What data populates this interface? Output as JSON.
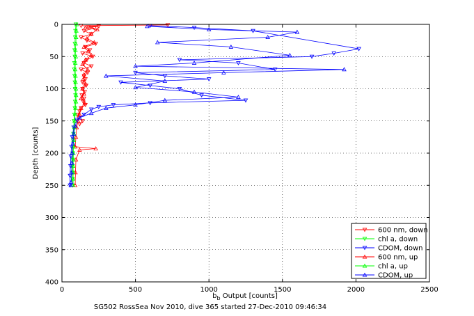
{
  "chart_data": {
    "type": "scatter",
    "xlabel": {
      "base": "b",
      "subscript": "b",
      "rest": " Output [counts]"
    },
    "ylabel": "Depth [counts]",
    "caption": "SG502 RossSea Nov 2010, dive 365 started 27-Dec-2010 09:46:34",
    "xlim": [
      0,
      2500
    ],
    "ylim": [
      0,
      400
    ],
    "y_reversed": true,
    "grid": true,
    "grid_style": "dotted",
    "legend_position": "bottom-right",
    "xticks": [
      0,
      500,
      1000,
      1500,
      2000,
      2500
    ],
    "xtick_labels": [
      "0",
      "500",
      "1000",
      "1500",
      "2000",
      "2500"
    ],
    "yticks": [
      0,
      50,
      100,
      150,
      200,
      250,
      300,
      350,
      400
    ],
    "ytick_labels": [
      "0",
      "50",
      "100",
      "150",
      "200",
      "250",
      "300",
      "350",
      "400"
    ],
    "series": [
      {
        "name": "600 nm, down",
        "color": "#ff0000",
        "marker": "triangle-down",
        "points": [
          [
            130,
            2
          ],
          [
            180,
            4
          ],
          [
            220,
            6
          ],
          [
            250,
            3
          ],
          [
            720,
            1
          ],
          [
            150,
            10
          ],
          [
            200,
            15
          ],
          [
            130,
            20
          ],
          [
            170,
            25
          ],
          [
            230,
            30
          ],
          [
            160,
            35
          ],
          [
            190,
            40
          ],
          [
            140,
            45
          ],
          [
            210,
            50
          ],
          [
            170,
            55
          ],
          [
            150,
            60
          ],
          [
            200,
            65
          ],
          [
            130,
            70
          ],
          [
            175,
            75
          ],
          [
            150,
            80
          ],
          [
            160,
            85
          ],
          [
            140,
            90
          ],
          [
            165,
            95
          ],
          [
            140,
            100
          ],
          [
            155,
            105
          ],
          [
            135,
            110
          ],
          [
            150,
            115
          ],
          [
            145,
            120
          ],
          [
            160,
            125
          ],
          [
            130,
            130
          ],
          [
            120,
            135
          ],
          [
            110,
            140
          ],
          [
            115,
            145
          ],
          [
            140,
            150
          ],
          [
            120,
            155
          ]
        ]
      },
      {
        "name": "chl a, down",
        "color": "#00ff00",
        "marker": "triangle-down",
        "points": [
          [
            95,
            0
          ],
          [
            92,
            10
          ],
          [
            90,
            20
          ],
          [
            88,
            30
          ],
          [
            86,
            40
          ],
          [
            88,
            50
          ],
          [
            85,
            60
          ],
          [
            84,
            70
          ],
          [
            86,
            80
          ],
          [
            88,
            90
          ],
          [
            90,
            100
          ],
          [
            92,
            110
          ],
          [
            90,
            120
          ],
          [
            88,
            130
          ],
          [
            85,
            140
          ],
          [
            82,
            150
          ],
          [
            80,
            160
          ],
          [
            78,
            170
          ],
          [
            76,
            180
          ],
          [
            75,
            190
          ],
          [
            74,
            200
          ],
          [
            73,
            210
          ],
          [
            72,
            220
          ],
          [
            72,
            230
          ],
          [
            72,
            240
          ],
          [
            72,
            250
          ]
        ]
      },
      {
        "name": "CDOM, down",
        "color": "#0000ff",
        "marker": "triangle-down",
        "points": [
          [
            600,
            2
          ],
          [
            900,
            5
          ],
          [
            1300,
            10
          ],
          [
            1850,
            45
          ],
          [
            2020,
            38
          ],
          [
            1700,
            50
          ],
          [
            800,
            55
          ],
          [
            1200,
            60
          ],
          [
            1450,
            70
          ],
          [
            500,
            75
          ],
          [
            700,
            80
          ],
          [
            1000,
            85
          ],
          [
            400,
            90
          ],
          [
            600,
            95
          ],
          [
            800,
            100
          ],
          [
            950,
            110
          ],
          [
            1250,
            118
          ],
          [
            600,
            122
          ],
          [
            350,
            125
          ],
          [
            250,
            128
          ],
          [
            200,
            132
          ],
          [
            150,
            140
          ],
          [
            100,
            148
          ],
          [
            80,
            160
          ],
          [
            70,
            175
          ],
          [
            65,
            190
          ],
          [
            60,
            205
          ],
          [
            58,
            220
          ],
          [
            55,
            235
          ],
          [
            55,
            250
          ]
        ]
      },
      {
        "name": "600 nm, up",
        "color": "#ff0000",
        "marker": "triangle-up",
        "points": [
          [
            160,
            5
          ],
          [
            240,
            8
          ],
          [
            200,
            15
          ],
          [
            170,
            22
          ],
          [
            220,
            28
          ],
          [
            150,
            35
          ],
          [
            180,
            42
          ],
          [
            200,
            48
          ],
          [
            160,
            55
          ],
          [
            140,
            62
          ],
          [
            175,
            70
          ],
          [
            150,
            78
          ],
          [
            145,
            85
          ],
          [
            160,
            92
          ],
          [
            140,
            100
          ],
          [
            150,
            108
          ],
          [
            130,
            115
          ],
          [
            155,
            122
          ],
          [
            130,
            130
          ],
          [
            120,
            140
          ],
          [
            110,
            150
          ],
          [
            100,
            160
          ],
          [
            95,
            175
          ],
          [
            90,
            190
          ],
          [
            230,
            193
          ],
          [
            120,
            195
          ],
          [
            95,
            210
          ],
          [
            92,
            230
          ],
          [
            90,
            250
          ]
        ]
      },
      {
        "name": "chl a, up",
        "color": "#00ff00",
        "marker": "triangle-up",
        "points": [
          [
            100,
            0
          ],
          [
            98,
            10
          ],
          [
            96,
            20
          ],
          [
            94,
            30
          ],
          [
            92,
            40
          ],
          [
            94,
            50
          ],
          [
            91,
            60
          ],
          [
            90,
            70
          ],
          [
            92,
            80
          ],
          [
            93,
            90
          ],
          [
            95,
            100
          ],
          [
            96,
            110
          ],
          [
            95,
            120
          ],
          [
            92,
            130
          ],
          [
            89,
            140
          ],
          [
            86,
            150
          ],
          [
            84,
            160
          ],
          [
            82,
            170
          ],
          [
            80,
            180
          ],
          [
            79,
            190
          ],
          [
            78,
            200
          ],
          [
            77,
            210
          ],
          [
            76,
            220
          ],
          [
            76,
            230
          ],
          [
            76,
            240
          ],
          [
            76,
            250
          ]
        ]
      },
      {
        "name": "CDOM, up",
        "color": "#0000ff",
        "marker": "triangle-up",
        "points": [
          [
            580,
            3
          ],
          [
            1000,
            8
          ],
          [
            1600,
            12
          ],
          [
            1400,
            20
          ],
          [
            650,
            28
          ],
          [
            1150,
            35
          ],
          [
            1550,
            48
          ],
          [
            1920,
            70
          ],
          [
            900,
            60
          ],
          [
            500,
            65
          ],
          [
            1100,
            75
          ],
          [
            300,
            80
          ],
          [
            700,
            88
          ],
          [
            500,
            98
          ],
          [
            900,
            105
          ],
          [
            1200,
            113
          ],
          [
            700,
            118
          ],
          [
            500,
            125
          ],
          [
            300,
            130
          ],
          [
            200,
            138
          ],
          [
            120,
            145
          ],
          [
            90,
            158
          ],
          [
            80,
            170
          ],
          [
            75,
            185
          ],
          [
            70,
            200
          ],
          [
            68,
            215
          ],
          [
            65,
            230
          ],
          [
            62,
            245
          ],
          [
            60,
            250
          ]
        ]
      }
    ]
  }
}
